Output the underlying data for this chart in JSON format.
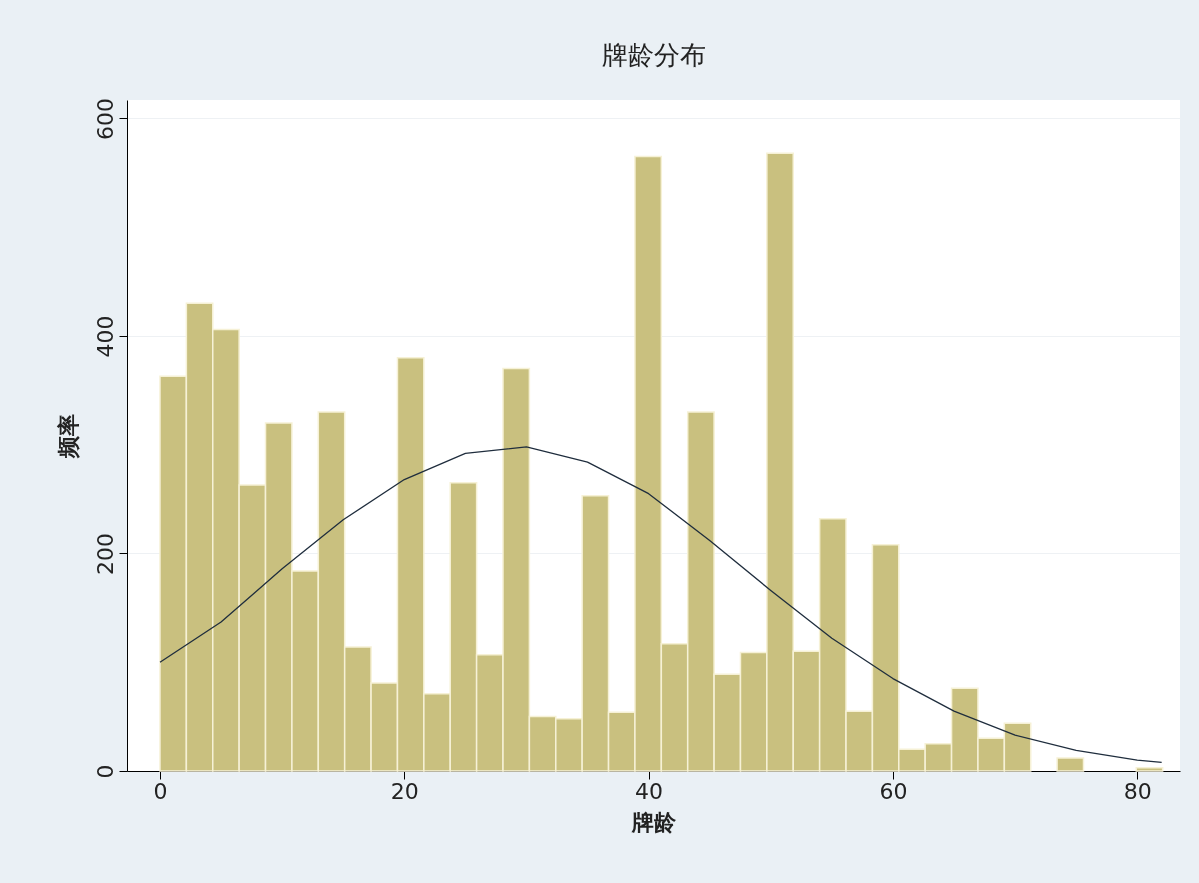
{
  "chart_data": {
    "type": "histogram",
    "title": "牌龄分布",
    "xlabel": "牌龄",
    "ylabel": "频率",
    "bins": [
      0,
      2.16,
      4.32,
      6.48,
      8.64,
      10.8,
      12.96,
      15.12,
      17.28,
      19.44,
      21.6,
      23.76,
      25.92,
      28.08,
      30.24,
      32.4,
      34.56,
      36.72,
      38.88,
      41.04,
      43.2,
      45.36,
      47.52,
      49.68,
      51.84,
      54,
      56.16,
      58.32,
      60.48,
      62.64,
      64.8,
      66.96,
      69.12,
      71.28,
      73.44,
      75.6,
      77.76,
      79.92,
      82.08
    ],
    "values": [
      363,
      430,
      406,
      263,
      320,
      184,
      330,
      114,
      81,
      380,
      71,
      265,
      107,
      370,
      50,
      48,
      253,
      54,
      565,
      117,
      330,
      89,
      109,
      568,
      110,
      232,
      55,
      208,
      20,
      25,
      76,
      30,
      44,
      0,
      12,
      0,
      0,
      3
    ],
    "color": "#c9c07f",
    "series": [
      {
        "type": "line",
        "color": "#1f2d3d",
        "x": [
          0,
          5,
          10,
          15,
          20,
          25,
          30,
          35,
          40,
          45,
          50,
          55,
          60,
          65,
          70,
          75,
          80,
          82
        ],
        "values": [
          100,
          137,
          186,
          231,
          268,
          292,
          298,
          284,
          255,
          212,
          166,
          122,
          85,
          55,
          33,
          19,
          10,
          8
        ]
      }
    ],
    "xlim": [
      -2.7,
      83.5
    ],
    "ylim": [
      0,
      617
    ],
    "xticks": [
      0,
      20,
      40,
      60,
      80
    ],
    "yticks": [
      0,
      200,
      400,
      600
    ],
    "grid": "y"
  }
}
